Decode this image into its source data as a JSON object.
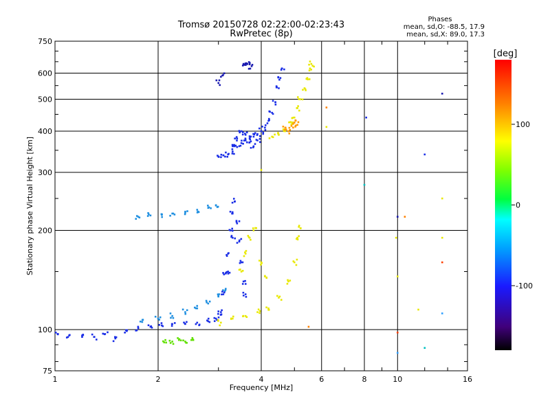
{
  "chart_data": {
    "type": "scatter",
    "title": "Tromsø 20150728 02:22:00-02:23:43",
    "subtitle": "RwPretec (8p)",
    "xlabel": "Frequency [MHz]",
    "ylabel": "Stationary phase Virtual Height [km]",
    "xscale": "log",
    "yscale": "log",
    "xlim": [
      1,
      16
    ],
    "ylim": [
      75,
      750
    ],
    "x_ticks": [
      1,
      2,
      4,
      6,
      8,
      10,
      16
    ],
    "x_tick_labels": [
      "1",
      "2",
      "4",
      "6",
      "8",
      "10",
      "16"
    ],
    "y_ticks": [
      75,
      100,
      200,
      300,
      400,
      500,
      600,
      750
    ],
    "y_tick_labels": [
      "75",
      "100",
      "200",
      "300",
      "400",
      "500",
      "600",
      "750"
    ],
    "grid": true,
    "phases_box": {
      "title": "Phases",
      "line1": "mean, sd,O: -88.5, 17.9",
      "line2": "mean, sd,X: 89.0, 17.3"
    },
    "colorbar": {
      "label": "[deg]",
      "range": [
        -180,
        180
      ],
      "ticks": [
        100,
        0,
        -100
      ],
      "tick_labels": [
        "100",
        "0",
        "-100"
      ]
    },
    "series": [
      {
        "color_hint": "blue",
        "points": [
          [
            1.02,
            97
          ],
          [
            1.1,
            96
          ],
          [
            1.2,
            95
          ],
          [
            1.3,
            95
          ],
          [
            1.4,
            97
          ],
          [
            1.5,
            94
          ],
          [
            1.62,
            99
          ],
          [
            1.75,
            101
          ],
          [
            1.9,
            102
          ],
          [
            2.05,
            103
          ],
          [
            2.2,
            104
          ],
          [
            2.4,
            104
          ],
          [
            2.6,
            105
          ],
          [
            2.8,
            106
          ],
          [
            2.95,
            108
          ],
          [
            3.05,
            111
          ]
        ]
      },
      {
        "color_hint": "light-blue",
        "points": [
          [
            1.8,
            107
          ],
          [
            2.0,
            108
          ],
          [
            2.2,
            110
          ],
          [
            2.4,
            113
          ],
          [
            2.6,
            116
          ],
          [
            2.8,
            120
          ],
          [
            3.0,
            126
          ],
          [
            3.15,
            133
          ]
        ]
      },
      {
        "color_hint": "light-blue",
        "points": [
          [
            1.75,
            220
          ],
          [
            1.9,
            222
          ],
          [
            2.05,
            223
          ],
          [
            2.2,
            225
          ],
          [
            2.4,
            228
          ],
          [
            2.6,
            231
          ],
          [
            2.8,
            234
          ],
          [
            2.95,
            238
          ]
        ]
      },
      {
        "color_hint": "blue",
        "points": [
          [
            3.05,
            113
          ],
          [
            3.1,
            128
          ],
          [
            3.15,
            148
          ],
          [
            3.2,
            170
          ],
          [
            3.25,
            200
          ],
          [
            3.3,
            225
          ],
          [
            3.35,
            245
          ],
          [
            3.4,
            210
          ],
          [
            3.45,
            185
          ],
          [
            3.5,
            160
          ],
          [
            3.55,
            140
          ],
          [
            3.6,
            128
          ],
          [
            3.3,
            190
          ],
          [
            3.2,
            150
          ]
        ]
      },
      {
        "color_hint": "blue",
        "points": [
          [
            3.0,
            335
          ],
          [
            3.1,
            338
          ],
          [
            3.2,
            340
          ],
          [
            3.3,
            347
          ],
          [
            3.4,
            358
          ],
          [
            3.5,
            368
          ],
          [
            3.6,
            375
          ],
          [
            3.7,
            380
          ],
          [
            3.8,
            385
          ],
          [
            3.9,
            392
          ],
          [
            4.0,
            400
          ],
          [
            4.1,
            410
          ],
          [
            4.2,
            430
          ],
          [
            4.3,
            455
          ],
          [
            4.4,
            490
          ],
          [
            4.5,
            540
          ],
          [
            4.55,
            580
          ],
          [
            4.6,
            620
          ]
        ]
      },
      {
        "color_hint": "blue",
        "points": [
          [
            3.3,
            360
          ],
          [
            3.4,
            380
          ],
          [
            3.5,
            400
          ],
          [
            3.6,
            390
          ],
          [
            3.7,
            370
          ],
          [
            3.8,
            360
          ],
          [
            3.9,
            375
          ]
        ]
      },
      {
        "color_hint": "dark-blue",
        "points": [
          [
            3.55,
            640
          ],
          [
            3.62,
            643
          ],
          [
            3.7,
            638
          ],
          [
            3.75,
            630
          ],
          [
            3.08,
            590
          ],
          [
            3.0,
            560
          ]
        ]
      },
      {
        "color_hint": "yellow",
        "points": [
          [
            3.05,
            105
          ],
          [
            3.3,
            108
          ],
          [
            3.6,
            110
          ],
          [
            3.9,
            113
          ],
          [
            4.2,
            116
          ],
          [
            4.5,
            125
          ],
          [
            4.8,
            140
          ],
          [
            5.0,
            160
          ],
          [
            5.1,
            190
          ],
          [
            5.15,
            205
          ]
        ]
      },
      {
        "color_hint": "yellow",
        "points": [
          [
            4.3,
            385
          ],
          [
            4.5,
            390
          ],
          [
            4.7,
            400
          ],
          [
            4.9,
            420
          ],
          [
            5.0,
            440
          ],
          [
            5.1,
            470
          ],
          [
            5.2,
            500
          ],
          [
            5.35,
            540
          ],
          [
            5.45,
            580
          ],
          [
            5.55,
            620
          ],
          [
            5.6,
            640
          ]
        ]
      },
      {
        "color_hint": "orange",
        "points": [
          [
            4.8,
            400
          ],
          [
            4.9,
            415
          ],
          [
            5.0,
            425
          ],
          [
            5.1,
            418
          ],
          [
            4.7,
            410
          ]
        ]
      },
      {
        "color_hint": "yellow",
        "points": [
          [
            3.5,
            150
          ],
          [
            3.6,
            170
          ],
          [
            3.7,
            190
          ],
          [
            3.8,
            200
          ],
          [
            4.0,
            160
          ],
          [
            4.1,
            145
          ]
        ]
      },
      {
        "color_hint": "green",
        "points": [
          [
            2.1,
            93
          ],
          [
            2.2,
            92
          ],
          [
            2.3,
            93
          ],
          [
            2.4,
            92
          ],
          [
            2.5,
            93
          ]
        ]
      },
      {
        "color_hint": "mixed",
        "points": [
          [
            6.2,
            472
          ],
          [
            6.2,
            412
          ],
          [
            8.1,
            440
          ],
          [
            8.0,
            275
          ],
          [
            10.0,
            220
          ],
          [
            9.9,
            190
          ],
          [
            10.0,
            145
          ],
          [
            10.0,
            98
          ],
          [
            10.0,
            85
          ],
          [
            10.5,
            220
          ],
          [
            11.5,
            115
          ],
          [
            12.0,
            340
          ],
          [
            12.0,
            88
          ],
          [
            13.5,
            520
          ],
          [
            13.5,
            250
          ],
          [
            13.5,
            190
          ],
          [
            13.5,
            160
          ],
          [
            13.5,
            112
          ],
          [
            5.5,
            102
          ],
          [
            4.0,
            305
          ]
        ]
      }
    ]
  }
}
